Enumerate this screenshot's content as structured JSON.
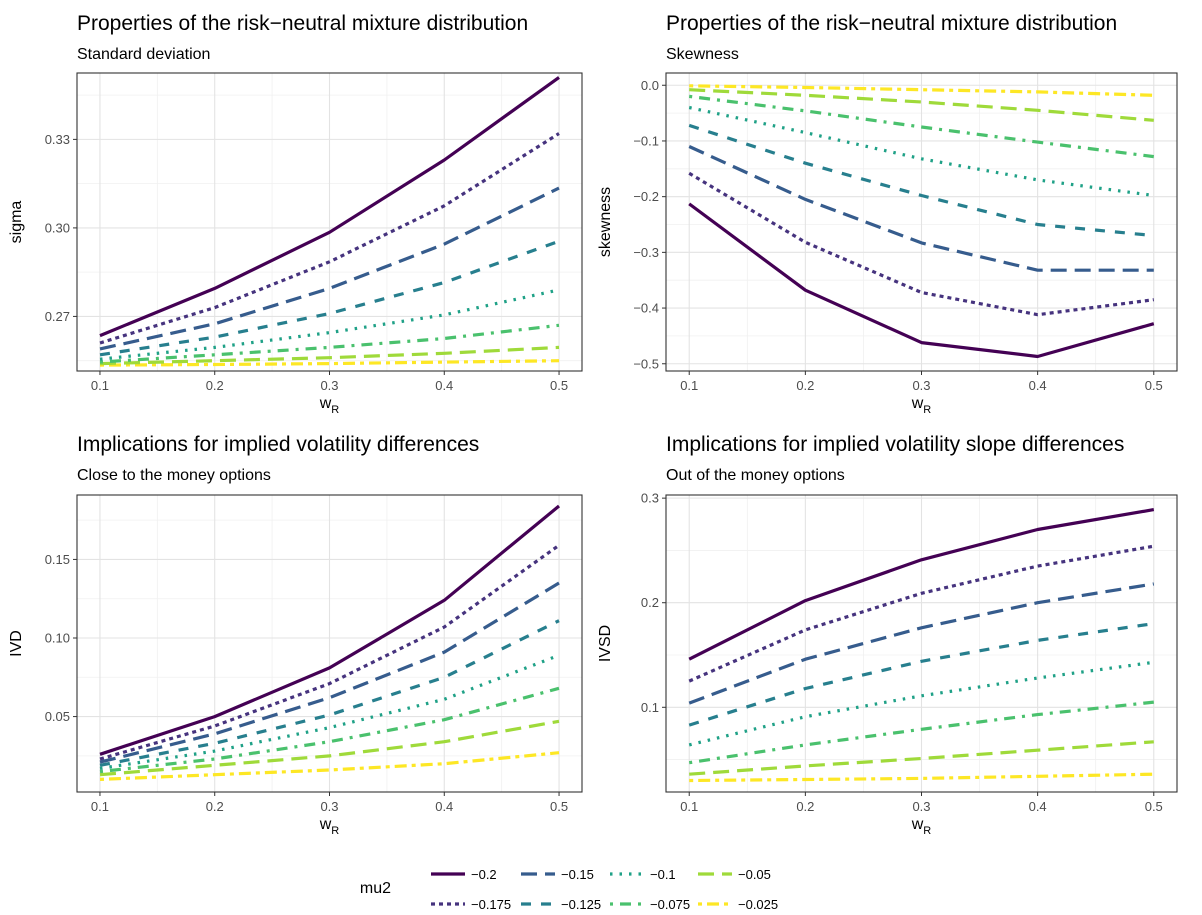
{
  "chart_data": [
    {
      "type": "line",
      "title": "Properties of the risk−neutral mixture distribution",
      "subtitle": "Standard deviation",
      "xlabel_main": "w",
      "xlabel_sub": "R",
      "ylabel": "sigma",
      "x": [
        0.1,
        0.2,
        0.3,
        0.4,
        0.5
      ],
      "x_ticks": [
        "0.1",
        "0.2",
        "0.3",
        "0.4",
        "0.5"
      ],
      "xlim": [
        0.08,
        0.52
      ],
      "ylim": [
        0.2515,
        0.3525
      ],
      "y_ticks": [
        0.27,
        0.3,
        0.33
      ],
      "y_tick_labels": [
        "0.27",
        "0.30",
        "0.33"
      ],
      "grid": true,
      "series": [
        {
          "name": "−0.2",
          "values": [
            0.2635,
            0.2795,
            0.2985,
            0.323,
            0.351
          ]
        },
        {
          "name": "−0.175",
          "values": [
            0.261,
            0.273,
            0.2885,
            0.3075,
            0.332
          ]
        },
        {
          "name": "−0.15",
          "values": [
            0.259,
            0.2675,
            0.2795,
            0.2945,
            0.3135
          ]
        },
        {
          "name": "−0.125",
          "values": [
            0.257,
            0.263,
            0.271,
            0.2815,
            0.2955
          ]
        },
        {
          "name": "−0.1",
          "values": [
            0.2555,
            0.2595,
            0.2645,
            0.2705,
            0.279
          ]
        },
        {
          "name": "−0.075",
          "values": [
            0.2545,
            0.257,
            0.2595,
            0.2625,
            0.267
          ]
        },
        {
          "name": "−0.05",
          "values": [
            0.254,
            0.255,
            0.256,
            0.2575,
            0.2595
          ]
        },
        {
          "name": "−0.025",
          "values": [
            0.2535,
            0.2537,
            0.254,
            0.2545,
            0.255
          ]
        }
      ]
    },
    {
      "type": "line",
      "title": "Properties of the risk−neutral mixture distribution",
      "subtitle": "Skewness",
      "xlabel_main": "w",
      "xlabel_sub": "R",
      "ylabel": "skewness",
      "x": [
        0.1,
        0.2,
        0.3,
        0.4,
        0.5
      ],
      "x_ticks": [
        "0.1",
        "0.2",
        "0.3",
        "0.4",
        "0.5"
      ],
      "xlim": [
        0.08,
        0.52
      ],
      "ylim": [
        -0.513,
        0.022
      ],
      "y_ticks": [
        -0.5,
        -0.4,
        -0.3,
        -0.2,
        -0.1,
        0.0
      ],
      "y_tick_labels": [
        "−0.5",
        "−0.4",
        "−0.3",
        "−0.2",
        "−0.1",
        "0.0"
      ],
      "grid": true,
      "series": [
        {
          "name": "−0.2",
          "values": [
            -0.213,
            -0.368,
            -0.462,
            -0.487,
            -0.428
          ]
        },
        {
          "name": "−0.175",
          "values": [
            -0.158,
            -0.282,
            -0.372,
            -0.412,
            -0.385
          ]
        },
        {
          "name": "−0.15",
          "values": [
            -0.11,
            -0.205,
            -0.283,
            -0.332,
            -0.332
          ]
        },
        {
          "name": "−0.125",
          "values": [
            -0.072,
            -0.14,
            -0.198,
            -0.25,
            -0.27
          ]
        },
        {
          "name": "−0.1",
          "values": [
            -0.04,
            -0.085,
            -0.132,
            -0.17,
            -0.198
          ]
        },
        {
          "name": "−0.075",
          "values": [
            -0.02,
            -0.046,
            -0.075,
            -0.102,
            -0.128
          ]
        },
        {
          "name": "−0.05",
          "values": [
            -0.008,
            -0.018,
            -0.03,
            -0.045,
            -0.063
          ]
        },
        {
          "name": "−0.025",
          "values": [
            -0.001,
            -0.004,
            -0.008,
            -0.012,
            -0.018
          ]
        }
      ]
    },
    {
      "type": "line",
      "title": "Implications for implied volatility differences",
      "subtitle": "Close to the money options",
      "xlabel_main": "w",
      "xlabel_sub": "R",
      "ylabel": "IVD",
      "x": [
        0.1,
        0.2,
        0.3,
        0.4,
        0.5
      ],
      "x_ticks": [
        "0.1",
        "0.2",
        "0.3",
        "0.4",
        "0.5"
      ],
      "xlim": [
        0.08,
        0.52
      ],
      "ylim": [
        0.002,
        0.191
      ],
      "y_ticks": [
        0.05,
        0.1,
        0.15
      ],
      "y_tick_labels": [
        "0.05",
        "0.10",
        "0.15"
      ],
      "grid": true,
      "series": [
        {
          "name": "−0.2",
          "values": [
            0.026,
            0.05,
            0.081,
            0.124,
            0.184
          ]
        },
        {
          "name": "−0.175",
          "values": [
            0.023,
            0.044,
            0.071,
            0.107,
            0.159
          ]
        },
        {
          "name": "−0.15",
          "values": [
            0.021,
            0.039,
            0.062,
            0.091,
            0.135
          ]
        },
        {
          "name": "−0.125",
          "values": [
            0.019,
            0.033,
            0.051,
            0.075,
            0.111
          ]
        },
        {
          "name": "−0.1",
          "values": [
            0.017,
            0.028,
            0.043,
            0.061,
            0.089
          ]
        },
        {
          "name": "−0.075",
          "values": [
            0.015,
            0.023,
            0.034,
            0.048,
            0.068
          ]
        },
        {
          "name": "−0.05",
          "values": [
            0.013,
            0.019,
            0.025,
            0.034,
            0.047
          ]
        },
        {
          "name": "−0.025",
          "values": [
            0.01,
            0.013,
            0.016,
            0.02,
            0.027
          ]
        }
      ]
    },
    {
      "type": "line",
      "title": "Implications for implied volatility slope differences",
      "subtitle": "Out of the money options",
      "xlabel_main": "w",
      "xlabel_sub": "R",
      "ylabel": "IVSD",
      "x": [
        0.1,
        0.2,
        0.3,
        0.4,
        0.5
      ],
      "x_ticks": [
        "0.1",
        "0.2",
        "0.3",
        "0.4",
        "0.5"
      ],
      "xlim": [
        0.08,
        0.52
      ],
      "ylim": [
        0.019,
        0.303
      ],
      "y_ticks": [
        0.1,
        0.2,
        0.3
      ],
      "y_tick_labels": [
        "0.1",
        "0.2",
        "0.3"
      ],
      "grid": true,
      "series": [
        {
          "name": "−0.2",
          "values": [
            0.146,
            0.202,
            0.241,
            0.27,
            0.289
          ]
        },
        {
          "name": "−0.175",
          "values": [
            0.125,
            0.174,
            0.209,
            0.235,
            0.254
          ]
        },
        {
          "name": "−0.15",
          "values": [
            0.104,
            0.146,
            0.176,
            0.2,
            0.218
          ]
        },
        {
          "name": "−0.125",
          "values": [
            0.083,
            0.118,
            0.144,
            0.164,
            0.18
          ]
        },
        {
          "name": "−0.1",
          "values": [
            0.064,
            0.091,
            0.111,
            0.128,
            0.143
          ]
        },
        {
          "name": "−0.075",
          "values": [
            0.047,
            0.064,
            0.079,
            0.093,
            0.105
          ]
        },
        {
          "name": "−0.05",
          "values": [
            0.036,
            0.044,
            0.051,
            0.059,
            0.067
          ]
        },
        {
          "name": "−0.025",
          "values": [
            0.03,
            0.031,
            0.032,
            0.034,
            0.036
          ]
        }
      ]
    }
  ],
  "legend": {
    "title": "mu2",
    "placement": "bottom",
    "entries": [
      {
        "label": "−0.2",
        "color": "#440154",
        "dash": "solid"
      },
      {
        "label": "−0.175",
        "color": "#46337E",
        "dash": "dotted-dash"
      },
      {
        "label": "−0.15",
        "color": "#365C8D",
        "dash": "long-dash"
      },
      {
        "label": "−0.125",
        "color": "#277F8E",
        "dash": "dash"
      },
      {
        "label": "−0.1",
        "color": "#1FA187",
        "dash": "dotted"
      },
      {
        "label": "−0.075",
        "color": "#4AC16D",
        "dash": "dot-dash"
      },
      {
        "label": "−0.05",
        "color": "#9FDA3A",
        "dash": "long-dash"
      },
      {
        "label": "−0.025",
        "color": "#FDE725",
        "dash": "two-dash"
      }
    ]
  }
}
